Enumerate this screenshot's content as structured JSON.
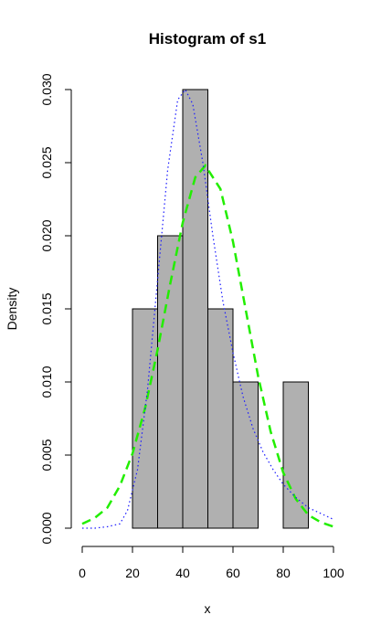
{
  "chart_data": {
    "type": "bar",
    "title": "Histogram of s1",
    "xlabel": "x",
    "ylabel": "Density",
    "xlim": [
      0,
      100
    ],
    "ylim": [
      0,
      0.03
    ],
    "x_ticks": [
      "0",
      "20",
      "40",
      "60",
      "80",
      "100"
    ],
    "y_ticks": [
      "0.000",
      "0.005",
      "0.010",
      "0.015",
      "0.020",
      "0.025",
      "0.030"
    ],
    "bins": [
      {
        "from": 20,
        "to": 30,
        "density": 0.015
      },
      {
        "from": 30,
        "to": 40,
        "density": 0.02
      },
      {
        "from": 40,
        "to": 50,
        "density": 0.03
      },
      {
        "from": 50,
        "to": 60,
        "density": 0.015
      },
      {
        "from": 60,
        "to": 70,
        "density": 0.01
      },
      {
        "from": 70,
        "to": 80,
        "density": 0.0
      },
      {
        "from": 80,
        "to": 90,
        "density": 0.01
      }
    ],
    "bar_color": "#b0b0b0",
    "curves": [
      {
        "style": "dashed",
        "color": "#22ee00",
        "x": [
          0,
          5,
          10,
          15,
          20,
          25,
          30,
          35,
          40,
          45,
          49,
          55,
          60,
          65,
          70,
          75,
          80,
          85,
          90,
          95,
          100
        ],
        "y": [
          0.0003,
          0.0007,
          0.0014,
          0.0029,
          0.0051,
          0.0082,
          0.0122,
          0.0167,
          0.0209,
          0.024,
          0.0248,
          0.0232,
          0.0196,
          0.015,
          0.0104,
          0.0066,
          0.0038,
          0.002,
          0.0009,
          0.0004,
          0.0001
        ]
      },
      {
        "style": "dotted",
        "color": "#1a1aff",
        "x": [
          0,
          5,
          10,
          15,
          18,
          22,
          26,
          30,
          34,
          38,
          41,
          44,
          48,
          52,
          56,
          60,
          64,
          68,
          72,
          76,
          80,
          85,
          90,
          95,
          100
        ],
        "y": [
          0.0,
          0.0,
          0.0001,
          0.0003,
          0.0012,
          0.004,
          0.0095,
          0.017,
          0.0245,
          0.0293,
          0.03,
          0.029,
          0.025,
          0.02,
          0.0155,
          0.012,
          0.009,
          0.0068,
          0.0052,
          0.004,
          0.003,
          0.0021,
          0.0014,
          0.001,
          0.0006
        ]
      }
    ]
  }
}
